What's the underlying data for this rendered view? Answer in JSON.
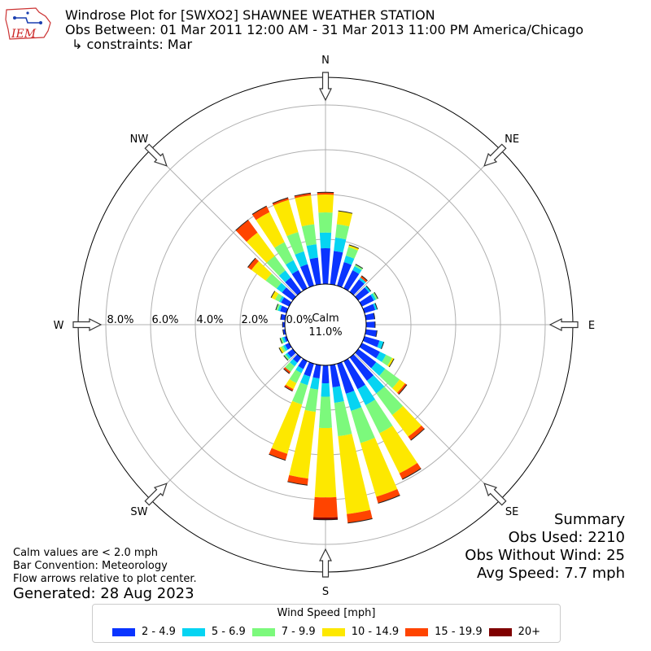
{
  "header": {
    "logo_text": "IEM",
    "title": "Windrose Plot for [SWXO2] SHAWNEE WEATHER STATION",
    "subtitle": "Obs Between: 01 Mar 2011 12:00 AM - 31 Mar 2013 11:00 PM America/Chicago",
    "constraints": "↳ constraints: Mar"
  },
  "summary": {
    "heading": "Summary",
    "obs_used": "Obs Used: 2210",
    "obs_without_wind": "Obs Without Wind: 25",
    "avg_speed": "Avg Speed: 7.7 mph"
  },
  "notes": {
    "calm": "Calm values are < 2.0 mph",
    "bar_convention": "Bar Convention: Meteorology",
    "flow_arrows": "Flow arrows relative to plot center.",
    "generated": "Generated: 28 Aug 2023"
  },
  "colors": {
    "bins": [
      "#0a34ff",
      "#06d4f2",
      "#7cf97c",
      "#fde800",
      "#ff4400",
      "#7f0000"
    ],
    "grid": "#b0b0b0"
  },
  "chart_data": {
    "type": "windrose",
    "calm_label": "Calm",
    "calm_value": "11.0%",
    "rings": [
      0,
      2,
      4,
      6,
      8
    ],
    "ring_labels": [
      "0.0%",
      "2.0%",
      "4.0%",
      "6.0%",
      "8.0%"
    ],
    "directions": [
      "N",
      "NE",
      "E",
      "SE",
      "S",
      "SW",
      "W",
      "NW"
    ],
    "legend_title": "Wind Speed [mph]",
    "speed_bins": [
      "2 - 4.9",
      "5 - 6.9",
      "7 - 9.9",
      "10 - 14.9",
      "15 - 19.9",
      "20+"
    ],
    "sectors": [
      {
        "dir": 0,
        "values": [
          1.6,
          0.7,
          0.9,
          0.8,
          0.1,
          0.0
        ]
      },
      {
        "dir": 10,
        "values": [
          1.5,
          0.6,
          0.6,
          0.6,
          0.0,
          0.0
        ]
      },
      {
        "dir": 20,
        "values": [
          1.1,
          0.3,
          0.4,
          0.1,
          0.0,
          0.0
        ]
      },
      {
        "dir": 30,
        "values": [
          0.9,
          0.2,
          0.1,
          0.0,
          0.0,
          0.0
        ]
      },
      {
        "dir": 40,
        "values": [
          0.7,
          0.1,
          0.0,
          0.0,
          0.1,
          0.0
        ]
      },
      {
        "dir": 50,
        "values": [
          0.6,
          0.1,
          0.0,
          0.0,
          0.0,
          0.0
        ]
      },
      {
        "dir": 60,
        "values": [
          0.6,
          0.1,
          0.1,
          0.0,
          0.0,
          0.0
        ]
      },
      {
        "dir": 70,
        "values": [
          0.5,
          0.1,
          0.0,
          0.0,
          0.0,
          0.0
        ]
      },
      {
        "dir": 80,
        "values": [
          0.4,
          0.0,
          0.0,
          0.0,
          0.0,
          0.0
        ]
      },
      {
        "dir": 90,
        "values": [
          0.4,
          0.0,
          0.0,
          0.0,
          0.0,
          0.0
        ]
      },
      {
        "dir": 100,
        "values": [
          0.5,
          0.0,
          0.0,
          0.0,
          0.0,
          0.0
        ]
      },
      {
        "dir": 110,
        "values": [
          0.7,
          0.2,
          0.0,
          0.0,
          0.0,
          0.0
        ]
      },
      {
        "dir": 120,
        "values": [
          0.9,
          0.3,
          0.3,
          0.1,
          0.0,
          0.0
        ]
      },
      {
        "dir": 130,
        "values": [
          1.0,
          0.5,
          0.8,
          0.3,
          0.1,
          0.0
        ]
      },
      {
        "dir": 140,
        "values": [
          1.3,
          0.7,
          1.2,
          1.2,
          0.2,
          0.0
        ]
      },
      {
        "dir": 150,
        "values": [
          1.4,
          0.8,
          1.4,
          2.0,
          0.3,
          0.0
        ]
      },
      {
        "dir": 160,
        "values": [
          1.4,
          0.8,
          1.5,
          2.5,
          0.3,
          0.0
        ]
      },
      {
        "dir": 170,
        "values": [
          1.0,
          0.7,
          1.5,
          3.5,
          0.4,
          0.0
        ]
      },
      {
        "dir": 180,
        "values": [
          0.8,
          0.6,
          1.4,
          3.1,
          0.9,
          0.1
        ]
      },
      {
        "dir": 190,
        "values": [
          0.6,
          0.5,
          1.0,
          3.0,
          0.3,
          0.0
        ]
      },
      {
        "dir": 200,
        "values": [
          0.6,
          0.4,
          0.9,
          2.3,
          0.3,
          0.0
        ]
      },
      {
        "dir": 210,
        "values": [
          0.4,
          0.2,
          0.5,
          0.3,
          0.1,
          0.0
        ]
      },
      {
        "dir": 220,
        "values": [
          0.3,
          0.2,
          0.3,
          0.0,
          0.1,
          0.0
        ]
      },
      {
        "dir": 230,
        "values": [
          0.3,
          0.1,
          0.1,
          0.0,
          0.0,
          0.0
        ]
      },
      {
        "dir": 240,
        "values": [
          0.2,
          0.1,
          0.1,
          0.1,
          0.0,
          0.0
        ]
      },
      {
        "dir": 250,
        "values": [
          0.1,
          0.1,
          0.1,
          0.0,
          0.0,
          0.0
        ]
      },
      {
        "dir": 260,
        "values": [
          0.1,
          0.0,
          0.0,
          0.0,
          0.0,
          0.0
        ]
      },
      {
        "dir": 270,
        "values": [
          0.1,
          0.0,
          0.0,
          0.0,
          0.0,
          0.0
        ]
      },
      {
        "dir": 280,
        "values": [
          0.2,
          0.0,
          0.0,
          0.0,
          0.0,
          0.0
        ]
      },
      {
        "dir": 290,
        "values": [
          0.3,
          0.1,
          0.1,
          0.0,
          0.0,
          0.0
        ]
      },
      {
        "dir": 300,
        "values": [
          0.4,
          0.1,
          0.2,
          0.2,
          0.0,
          0.0
        ]
      },
      {
        "dir": 310,
        "values": [
          0.6,
          0.3,
          0.6,
          0.8,
          0.2,
          0.0
        ]
      },
      {
        "dir": 320,
        "values": [
          0.8,
          0.4,
          0.8,
          1.3,
          0.7,
          0.0
        ]
      },
      {
        "dir": 330,
        "values": [
          0.9,
          0.5,
          0.9,
          1.5,
          0.3,
          0.0
        ]
      },
      {
        "dir": 340,
        "values": [
          1.0,
          0.6,
          0.9,
          1.5,
          0.1,
          0.0
        ]
      },
      {
        "dir": 350,
        "values": [
          1.2,
          0.6,
          0.9,
          1.3,
          0.1,
          0.0
        ]
      }
    ]
  }
}
